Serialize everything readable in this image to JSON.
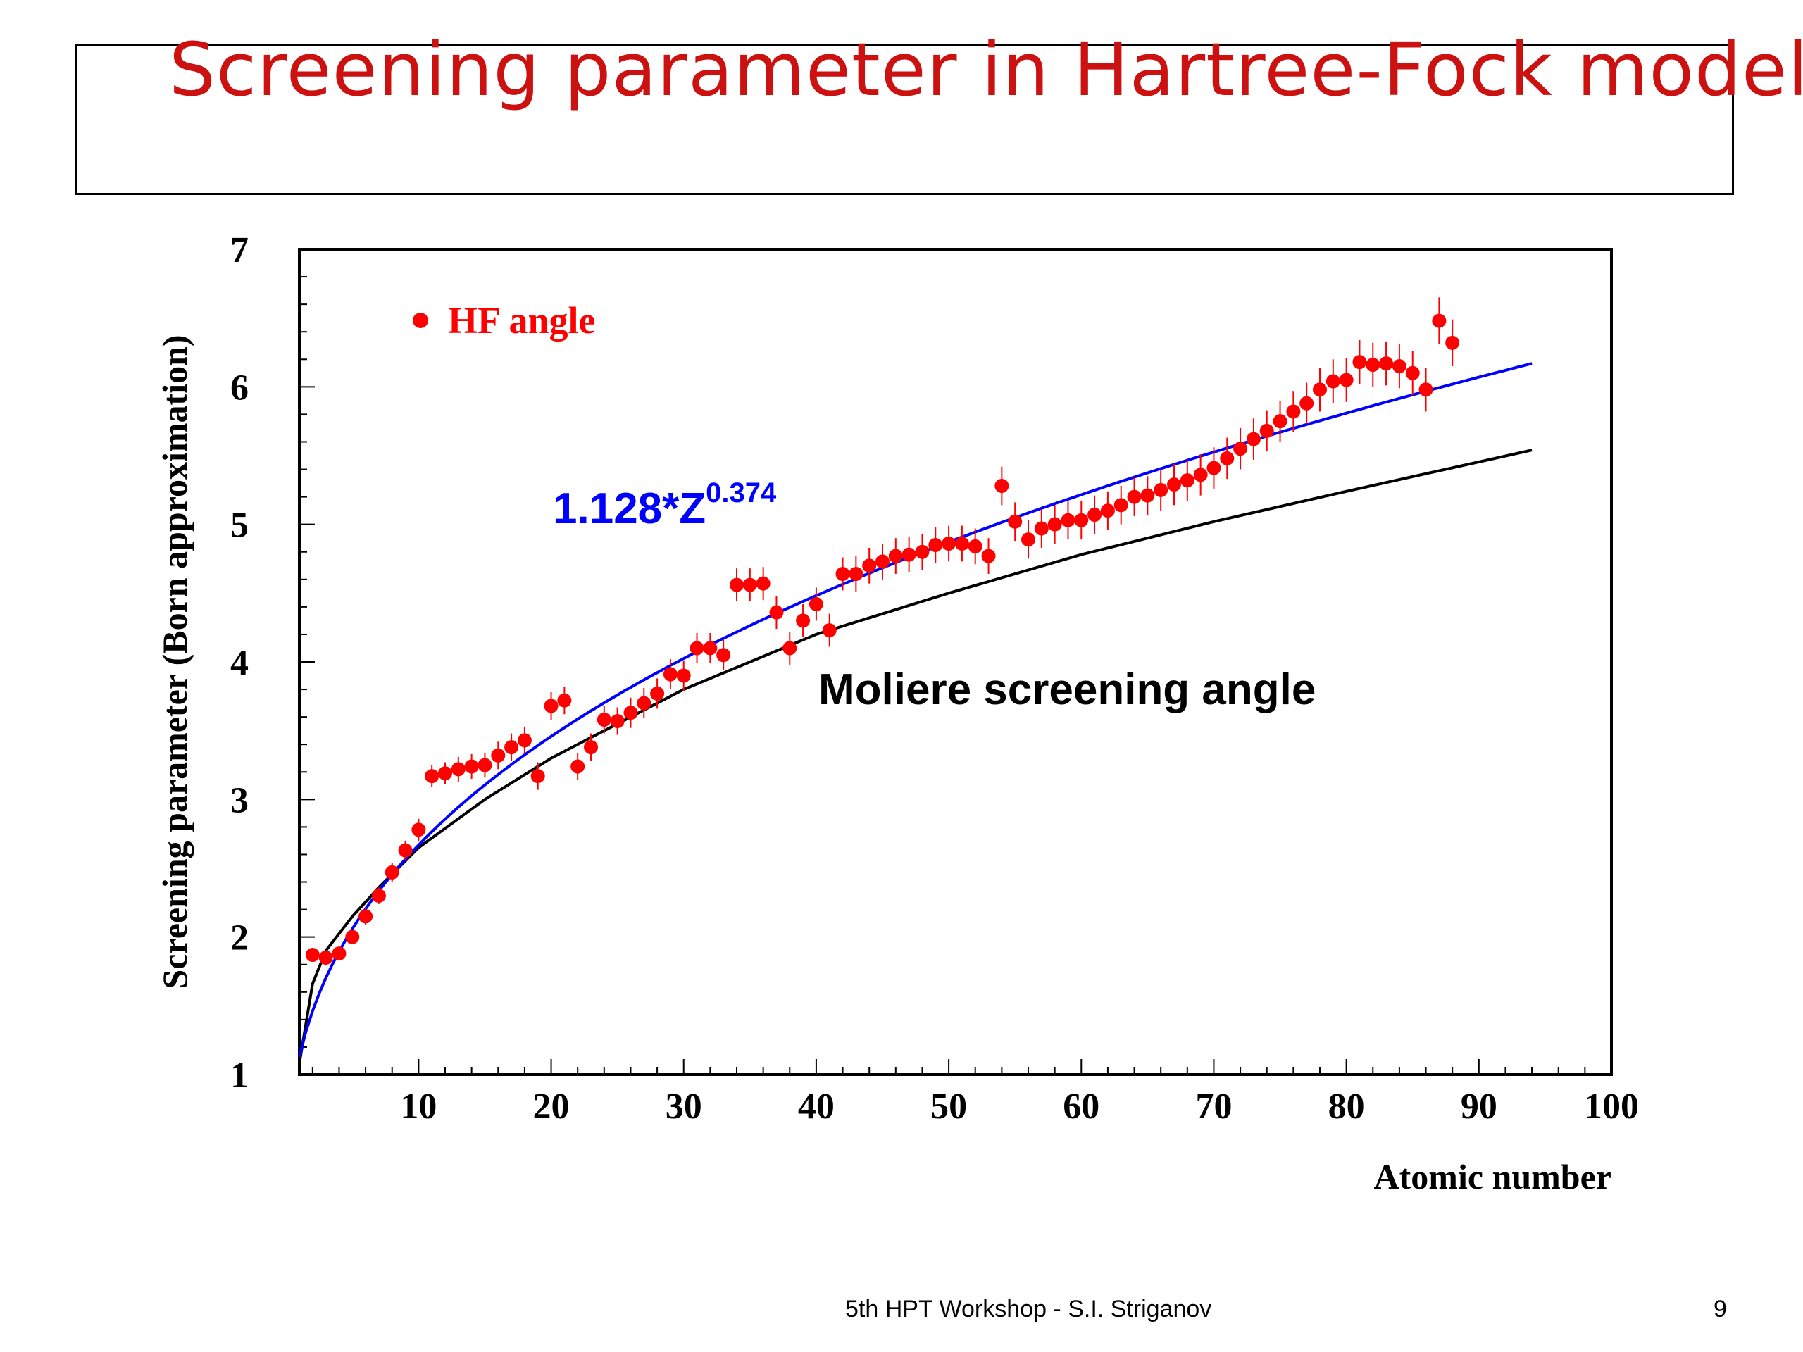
{
  "slide": {
    "title": "Screening parameter in Hartree-Fock model",
    "footer_center": "5th HPT Workshop  -  S.I. Striganov",
    "page_number": "9"
  },
  "chart_data": {
    "type": "scatter",
    "xlabel": "Atomic number",
    "ylabel": "Screening parameter (Born approximation)",
    "xlim": [
      1,
      100
    ],
    "ylim": [
      1,
      7
    ],
    "x_ticks": [
      10,
      20,
      30,
      40,
      50,
      60,
      70,
      80,
      90,
      100
    ],
    "y_ticks": [
      1,
      2,
      3,
      4,
      5,
      6,
      7
    ],
    "grid": false,
    "legend_position": "top-left",
    "colors": {
      "hf": "#ff0000",
      "fit": "#0000ff",
      "moliere": "#000000"
    },
    "series": [
      {
        "name": "HF angle",
        "kind": "points_with_error_bars",
        "x": [
          2,
          3,
          4,
          5,
          6,
          7,
          8,
          9,
          10,
          11,
          12,
          13,
          14,
          15,
          16,
          17,
          18,
          19,
          20,
          21,
          22,
          23,
          24,
          25,
          26,
          27,
          28,
          29,
          30,
          31,
          32,
          33,
          34,
          35,
          36,
          37,
          38,
          39,
          40,
          41,
          42,
          43,
          44,
          45,
          46,
          47,
          48,
          49,
          50,
          51,
          52,
          53,
          54,
          55,
          56,
          57,
          58,
          59,
          60,
          61,
          62,
          63,
          64,
          65,
          66,
          67,
          68,
          69,
          70,
          71,
          72,
          73,
          74,
          75,
          76,
          77,
          78,
          79,
          80,
          81,
          82,
          83,
          84,
          85,
          86,
          87,
          88
        ],
        "y": [
          1.87,
          1.85,
          1.88,
          2.0,
          2.15,
          2.3,
          2.47,
          2.63,
          2.78,
          3.17,
          3.19,
          3.22,
          3.24,
          3.25,
          3.32,
          3.38,
          3.43,
          3.17,
          3.68,
          3.72,
          3.24,
          3.38,
          3.58,
          3.57,
          3.63,
          3.7,
          3.77,
          3.91,
          3.9,
          4.1,
          4.1,
          4.05,
          4.56,
          4.56,
          4.57,
          4.36,
          4.1,
          4.3,
          4.42,
          4.23,
          4.64,
          4.64,
          4.7,
          4.73,
          4.77,
          4.78,
          4.8,
          4.85,
          4.86,
          4.86,
          4.84,
          4.77,
          5.28,
          5.02,
          4.89,
          4.97,
          5.0,
          5.03,
          5.03,
          5.07,
          5.1,
          5.14,
          5.2,
          5.21,
          5.25,
          5.29,
          5.32,
          5.36,
          5.41,
          5.48,
          5.55,
          5.62,
          5.68,
          5.75,
          5.82,
          5.88,
          5.98,
          6.04,
          6.05,
          6.18,
          6.16,
          6.17,
          6.15,
          6.1,
          5.98,
          6.48,
          6.32
        ],
        "yerr": [
          0.05,
          0.05,
          0.05,
          0.05,
          0.06,
          0.06,
          0.07,
          0.07,
          0.08,
          0.08,
          0.08,
          0.09,
          0.09,
          0.09,
          0.1,
          0.1,
          0.1,
          0.1,
          0.1,
          0.1,
          0.1,
          0.1,
          0.1,
          0.1,
          0.11,
          0.11,
          0.11,
          0.11,
          0.11,
          0.11,
          0.11,
          0.11,
          0.12,
          0.12,
          0.12,
          0.12,
          0.12,
          0.12,
          0.12,
          0.12,
          0.12,
          0.13,
          0.13,
          0.13,
          0.13,
          0.13,
          0.13,
          0.13,
          0.13,
          0.13,
          0.13,
          0.13,
          0.14,
          0.14,
          0.14,
          0.14,
          0.14,
          0.14,
          0.14,
          0.14,
          0.14,
          0.14,
          0.14,
          0.14,
          0.15,
          0.15,
          0.15,
          0.15,
          0.15,
          0.15,
          0.15,
          0.15,
          0.15,
          0.15,
          0.15,
          0.15,
          0.16,
          0.16,
          0.16,
          0.16,
          0.16,
          0.16,
          0.16,
          0.16,
          0.16,
          0.17,
          0.17
        ]
      },
      {
        "name": "1.128*Z^0.374",
        "kind": "curve",
        "formula": {
          "a": 1.128,
          "b": 0.374
        },
        "x_range": [
          1,
          94
        ]
      },
      {
        "name": "Moliere screening angle",
        "kind": "curve",
        "x": [
          1,
          2,
          3,
          5,
          7,
          10,
          15,
          20,
          30,
          40,
          50,
          60,
          70,
          80,
          94
        ],
        "y": [
          1.08,
          1.66,
          1.9,
          2.15,
          2.36,
          2.65,
          3.0,
          3.3,
          3.8,
          4.2,
          4.5,
          4.78,
          5.02,
          5.24,
          5.54
        ]
      }
    ],
    "annotations": [
      {
        "text_base": "1.128*Z",
        "text_sup": "0.374",
        "color": "#0000ff"
      },
      {
        "text": "Moliere screening angle",
        "color": "#000000"
      }
    ]
  }
}
